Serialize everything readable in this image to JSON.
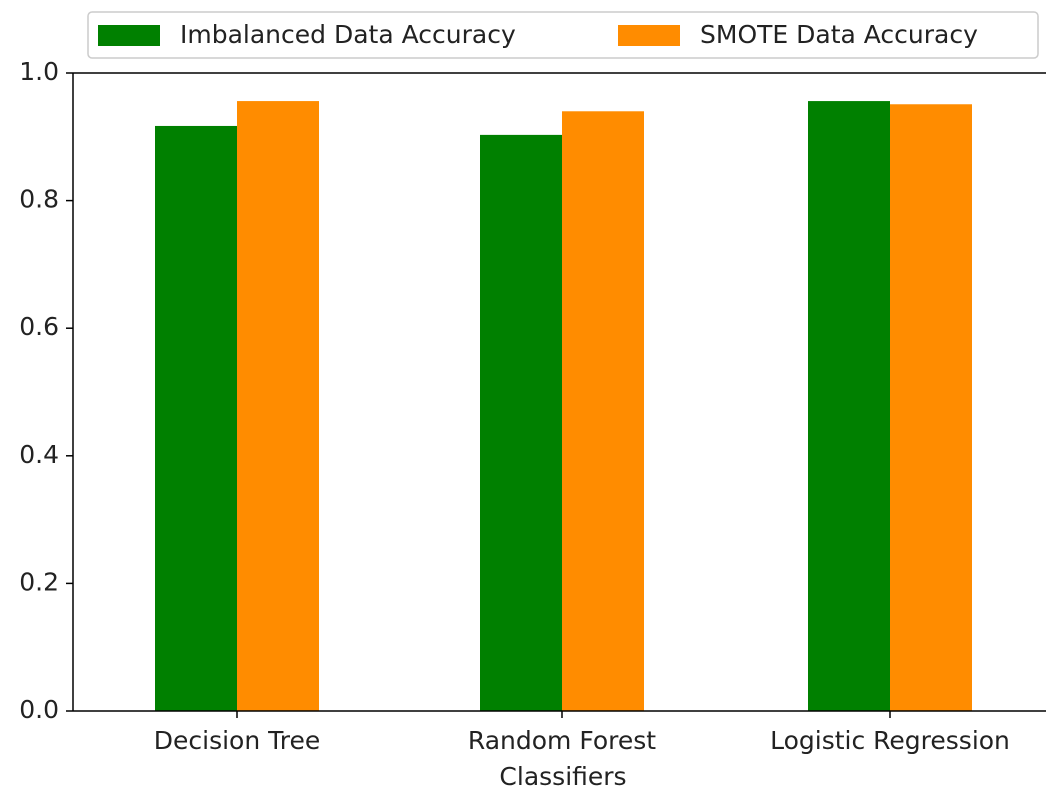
{
  "chart_data": {
    "type": "bar",
    "categories": [
      "Decision Tree",
      "Random Forest",
      "Logistic Regression"
    ],
    "series": [
      {
        "name": "Imbalanced Data Accuracy",
        "color": "#008000",
        "values": [
          0.917,
          0.903,
          0.956
        ]
      },
      {
        "name": "SMOTE Data Accuracy",
        "color": "#ff8c00",
        "values": [
          0.956,
          0.94,
          0.951
        ]
      }
    ],
    "x_label": "Classifiers",
    "ylim": [
      0,
      1
    ],
    "yticks": [
      {
        "value": 0,
        "label": "0.0"
      },
      0.2,
      0.4,
      0.6,
      0.8,
      {
        "value": 1,
        "label": "1.0"
      }
    ],
    "legend": "top"
  }
}
